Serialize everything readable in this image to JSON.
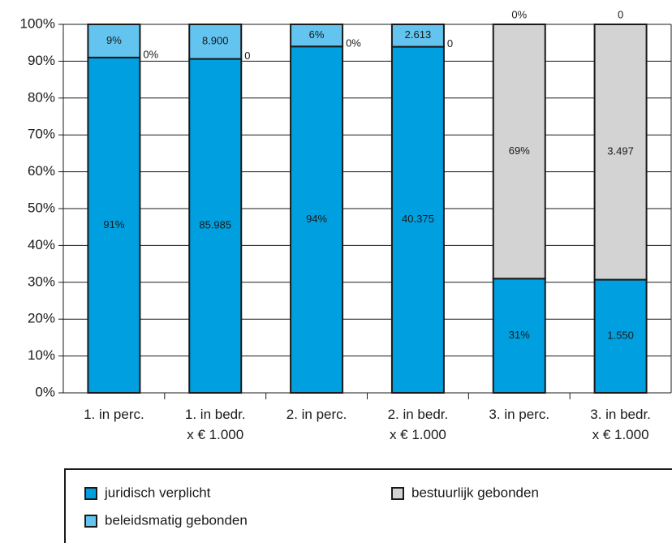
{
  "chart_data": {
    "type": "bar",
    "stacking": "percent",
    "categories": [
      [
        "1. in perc."
      ],
      [
        "1. in bedr.",
        "x € 1.000"
      ],
      [
        "2. in perc."
      ],
      [
        "2. in bedr.",
        "x € 1.000"
      ],
      [
        "3. in perc."
      ],
      [
        "3. in bedr.",
        "x € 1.000"
      ]
    ],
    "series": [
      {
        "name": "juridisch verplicht",
        "color": "#009fdf",
        "values": [
          91,
          85985,
          94,
          40375,
          31,
          1550
        ],
        "value_labels": [
          "91%",
          "85.985",
          "94%",
          "40.375",
          "31%",
          "1.550"
        ]
      },
      {
        "name": "bestuurlijk gebonden",
        "color": "#d3d3d3",
        "values": [
          0,
          0,
          0,
          0,
          69,
          3497
        ],
        "value_labels": [
          "0%",
          "0",
          "0%",
          "0",
          "69%",
          "3.497"
        ]
      },
      {
        "name": "beleidsmatig gebonden",
        "color": "#62c4ef",
        "values": [
          9,
          8900,
          6,
          2613,
          0,
          0
        ],
        "value_labels": [
          "9%",
          "8.900",
          "6%",
          "2.613",
          "0%",
          "0"
        ]
      }
    ],
    "ylim": [
      0,
      100
    ],
    "yticks": [
      {
        "value": 0,
        "label": "0%"
      },
      {
        "value": 10,
        "label": "10%"
      },
      {
        "value": 20,
        "label": "20%"
      },
      {
        "value": 30,
        "label": "30%"
      },
      {
        "value": 40,
        "label": "40%"
      },
      {
        "value": 50,
        "label": "50%"
      },
      {
        "value": 60,
        "label": "60%"
      },
      {
        "value": 70,
        "label": "70%"
      },
      {
        "value": 80,
        "label": "80%"
      },
      {
        "value": 90,
        "label": "90%"
      },
      {
        "value": 100,
        "label": "100%"
      }
    ],
    "grid": true
  }
}
